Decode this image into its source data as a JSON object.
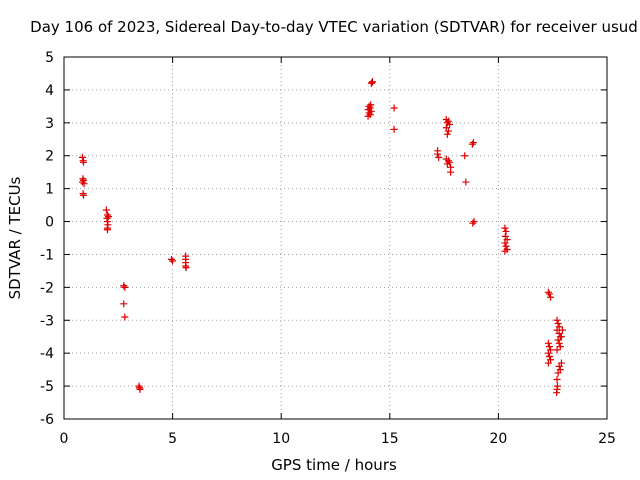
{
  "chart_data": {
    "type": "scatter",
    "title": "Day 106 of 2023, Sidereal Day-to-day VTEC variation (SDTVAR) for receiver usud",
    "xlabel": "GPS time / hours",
    "ylabel": "SDTVAR / TECUs",
    "xlim": [
      0,
      25
    ],
    "ylim": [
      -6,
      5
    ],
    "x_ticks": [
      0,
      5,
      10,
      15,
      20,
      25
    ],
    "y_ticks": [
      -6,
      -5,
      -4,
      -3,
      -2,
      -1,
      0,
      1,
      2,
      3,
      4,
      5
    ],
    "x_tick_labels": [
      "0",
      "5",
      "10",
      "15",
      "20",
      "25"
    ],
    "y_tick_labels": [
      "-6",
      "-5",
      "-4",
      "-3",
      "-2",
      "-1",
      "0",
      "1",
      "2",
      "3",
      "4",
      "5"
    ],
    "grid": true,
    "marker": "+",
    "color": "#e00000",
    "points": [
      [
        0.85,
        1.95
      ],
      [
        0.88,
        1.85
      ],
      [
        0.9,
        1.8
      ],
      [
        0.87,
        1.3
      ],
      [
        0.9,
        1.25
      ],
      [
        0.85,
        1.2
      ],
      [
        0.92,
        1.15
      ],
      [
        0.88,
        0.85
      ],
      [
        0.9,
        0.8
      ],
      [
        1.95,
        0.35
      ],
      [
        2.0,
        0.2
      ],
      [
        1.98,
        0.1
      ],
      [
        2.05,
        0.15
      ],
      [
        2.0,
        0.0
      ],
      [
        2.02,
        -0.1
      ],
      [
        2.0,
        -0.2
      ],
      [
        2.0,
        -0.25
      ],
      [
        2.75,
        -1.95
      ],
      [
        2.8,
        -2.0
      ],
      [
        2.75,
        -2.5
      ],
      [
        2.8,
        -2.9
      ],
      [
        3.45,
        -5.0
      ],
      [
        3.5,
        -5.1
      ],
      [
        3.48,
        -5.05
      ],
      [
        4.95,
        -1.15
      ],
      [
        5.0,
        -1.2
      ],
      [
        5.6,
        -1.05
      ],
      [
        5.6,
        -1.15
      ],
      [
        5.6,
        -1.25
      ],
      [
        5.6,
        -1.35
      ],
      [
        5.62,
        -1.4
      ],
      [
        14.05,
        3.5
      ],
      [
        14.1,
        3.45
      ],
      [
        14.0,
        3.4
      ],
      [
        14.15,
        3.35
      ],
      [
        14.05,
        3.3
      ],
      [
        14.1,
        3.25
      ],
      [
        14.0,
        3.2
      ],
      [
        14.12,
        3.55
      ],
      [
        14.15,
        4.2
      ],
      [
        14.2,
        4.25
      ],
      [
        14.18,
        4.22
      ],
      [
        15.2,
        3.45
      ],
      [
        15.2,
        2.8
      ],
      [
        17.2,
        2.15
      ],
      [
        17.2,
        2.05
      ],
      [
        17.25,
        1.95
      ],
      [
        17.6,
        3.1
      ],
      [
        17.7,
        3.05
      ],
      [
        17.65,
        3.0
      ],
      [
        17.75,
        2.95
      ],
      [
        17.6,
        2.85
      ],
      [
        17.7,
        2.75
      ],
      [
        17.65,
        2.65
      ],
      [
        17.6,
        1.9
      ],
      [
        17.7,
        1.85
      ],
      [
        17.75,
        1.8
      ],
      [
        17.65,
        1.75
      ],
      [
        17.8,
        1.65
      ],
      [
        17.8,
        1.5
      ],
      [
        18.45,
        2.0
      ],
      [
        18.5,
        1.2
      ],
      [
        18.8,
        2.35
      ],
      [
        18.85,
        2.4
      ],
      [
        18.82,
        -0.05
      ],
      [
        18.88,
        -0.0
      ],
      [
        20.3,
        -0.2
      ],
      [
        20.35,
        -0.3
      ],
      [
        20.32,
        -0.45
      ],
      [
        20.4,
        -0.55
      ],
      [
        20.3,
        -0.65
      ],
      [
        20.35,
        -0.75
      ],
      [
        20.4,
        -0.85
      ],
      [
        20.3,
        -0.9
      ],
      [
        22.3,
        -2.15
      ],
      [
        22.35,
        -2.2
      ],
      [
        22.4,
        -2.3
      ],
      [
        22.3,
        -3.7
      ],
      [
        22.35,
        -3.8
      ],
      [
        22.4,
        -3.9
      ],
      [
        22.3,
        -4.0
      ],
      [
        22.35,
        -4.1
      ],
      [
        22.4,
        -4.2
      ],
      [
        22.3,
        -4.3
      ],
      [
        22.7,
        -3.0
      ],
      [
        22.75,
        -3.1
      ],
      [
        22.8,
        -3.2
      ],
      [
        22.7,
        -3.3
      ],
      [
        22.8,
        -3.4
      ],
      [
        22.85,
        -3.5
      ],
      [
        22.75,
        -3.6
      ],
      [
        22.8,
        -3.7
      ],
      [
        22.85,
        -3.8
      ],
      [
        22.7,
        -3.9
      ],
      [
        22.9,
        -3.5
      ],
      [
        22.95,
        -3.3
      ],
      [
        22.8,
        -4.4
      ],
      [
        22.75,
        -4.6
      ],
      [
        22.7,
        -4.8
      ],
      [
        22.72,
        -5.0
      ],
      [
        22.68,
        -5.2
      ],
      [
        22.7,
        -5.1
      ],
      [
        22.85,
        -4.5
      ],
      [
        22.9,
        -4.3
      ]
    ]
  }
}
